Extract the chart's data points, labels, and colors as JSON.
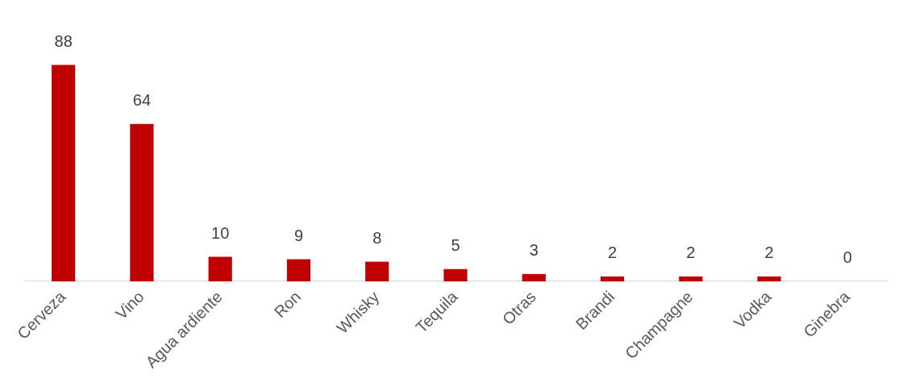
{
  "chart_data": {
    "type": "bar",
    "categories": [
      "Cerveza",
      "Vino",
      "Agua ardiente",
      "Ron",
      "Whisky",
      "Tequila",
      "Otras",
      "Brandi",
      "Champagne",
      "Vodka",
      "Ginebra"
    ],
    "values": [
      88,
      64,
      10,
      9,
      8,
      5,
      3,
      2,
      2,
      2,
      0
    ],
    "color": "#c00000",
    "data_labels": true,
    "grid": false,
    "legend": false
  }
}
